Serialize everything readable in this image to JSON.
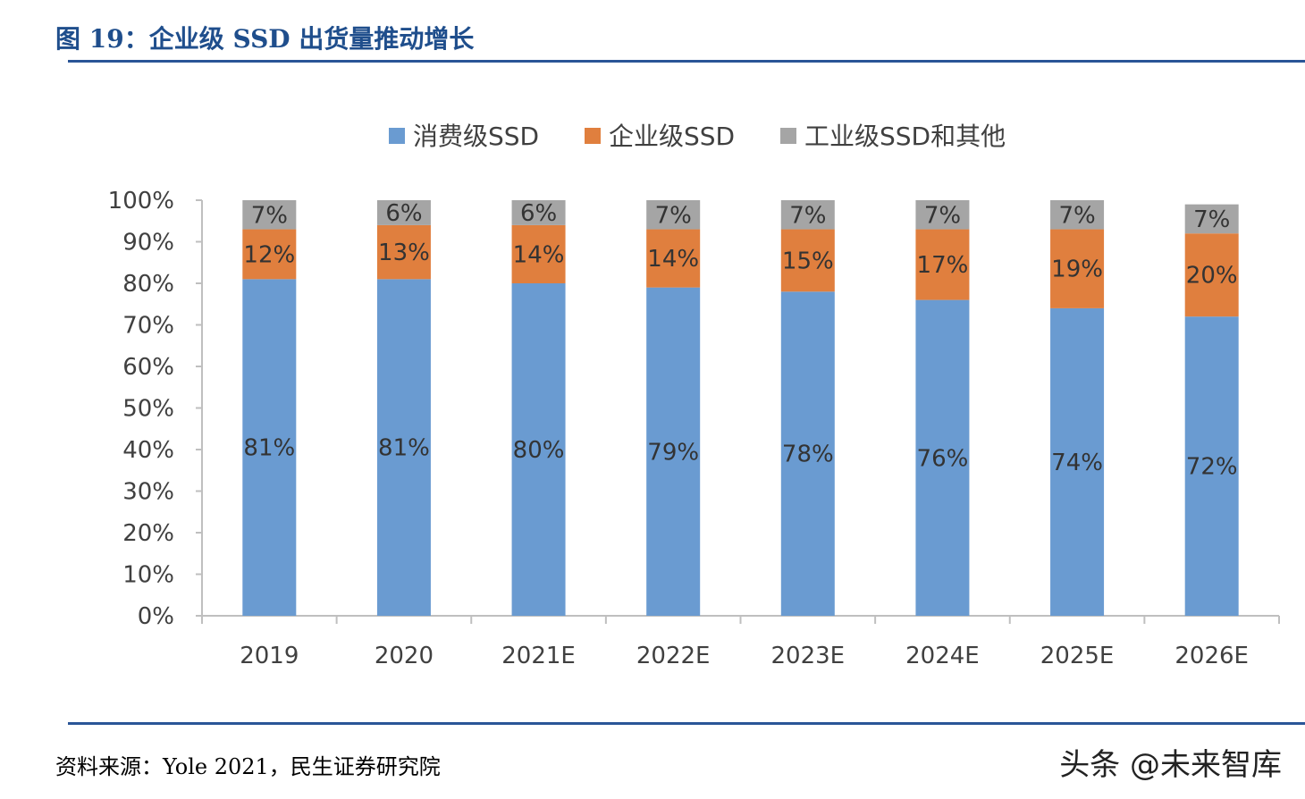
{
  "title": "图 19：企业级 SSD 出货量推动增长",
  "source": "资料来源：Yole 2021，民生证券研究院",
  "watermark": "头条 @未来智库",
  "chart_data": {
    "type": "bar",
    "stacked": true,
    "categories": [
      "2019",
      "2020",
      "2021E",
      "2022E",
      "2023E",
      "2024E",
      "2025E",
      "2026E"
    ],
    "series": [
      {
        "name": "消费级SSD",
        "color": "#6a9bd1",
        "values": [
          81,
          81,
          80,
          79,
          78,
          76,
          74,
          72
        ]
      },
      {
        "name": "企业级SSD",
        "color": "#e07f3e",
        "values": [
          12,
          13,
          14,
          14,
          15,
          17,
          19,
          20
        ]
      },
      {
        "name": "工业级SSD和其他",
        "color": "#a5a5a5",
        "values": [
          7,
          6,
          6,
          7,
          7,
          7,
          7,
          7
        ]
      }
    ],
    "ylim": [
      0,
      100
    ],
    "yticks": [
      "0%",
      "10%",
      "20%",
      "30%",
      "40%",
      "50%",
      "60%",
      "70%",
      "80%",
      "90%",
      "100%"
    ],
    "legend_position": "top",
    "grid": false
  }
}
